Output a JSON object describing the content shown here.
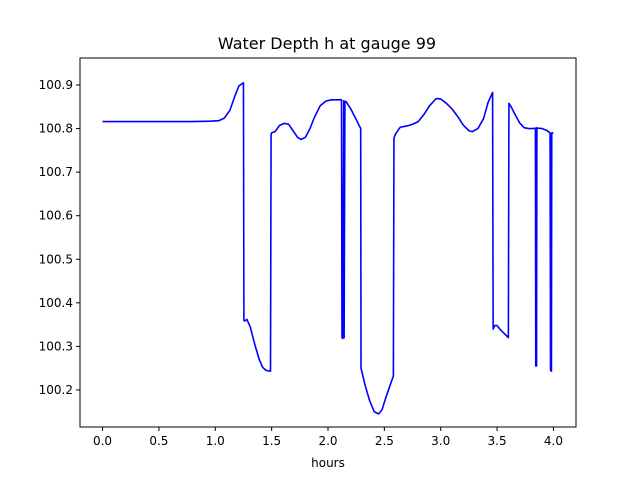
{
  "chart_data": {
    "type": "line",
    "title": "Water Depth h at gauge 99",
    "xlabel": "hours",
    "ylabel": "",
    "xlim": [
      -0.2,
      4.2
    ],
    "ylim": [
      100.115,
      100.962
    ],
    "xticks": [
      0.0,
      0.5,
      1.0,
      1.5,
      2.0,
      2.5,
      3.0,
      3.5,
      4.0
    ],
    "xtick_labels": [
      "0.0",
      "0.5",
      "1.0",
      "1.5",
      "2.0",
      "2.5",
      "3.0",
      "3.5",
      "4.0"
    ],
    "yticks": [
      100.2,
      100.3,
      100.4,
      100.5,
      100.6,
      100.7,
      100.8,
      100.9
    ],
    "ytick_labels": [
      "100.2",
      "100.3",
      "100.4",
      "100.5",
      "100.6",
      "100.7",
      "100.8",
      "100.9"
    ],
    "grid": false,
    "line_color": "#0000ff",
    "series": [
      {
        "name": "",
        "x": [
          0.0,
          0.2,
          0.5,
          0.8,
          0.95,
          1.03,
          1.08,
          1.13,
          1.17,
          1.21,
          1.25,
          1.254,
          1.26,
          1.28,
          1.31,
          1.35,
          1.39,
          1.42,
          1.45,
          1.49,
          1.495,
          1.5,
          1.53,
          1.57,
          1.61,
          1.65,
          1.69,
          1.73,
          1.76,
          1.8,
          1.84,
          1.88,
          1.93,
          1.98,
          2.03,
          2.08,
          2.12,
          2.124,
          2.13,
          2.14,
          2.143,
          2.15,
          2.16,
          2.17,
          2.2,
          2.24,
          2.29,
          2.293,
          2.33,
          2.37,
          2.41,
          2.45,
          2.48,
          2.51,
          2.55,
          2.58,
          2.585,
          2.6,
          2.64,
          2.7,
          2.75,
          2.8,
          2.85,
          2.9,
          2.96,
          3.0,
          3.05,
          3.1,
          3.15,
          3.2,
          3.25,
          3.28,
          3.33,
          3.38,
          3.42,
          3.46,
          3.465,
          3.48,
          3.5,
          3.53,
          3.57,
          3.6,
          3.605,
          3.62,
          3.66,
          3.7,
          3.74,
          3.78,
          3.82,
          3.84,
          3.843,
          3.846,
          3.85,
          3.853,
          3.86,
          3.9,
          3.94,
          3.97,
          3.974,
          3.978,
          3.982,
          3.985,
          4.0
        ],
        "y": [
          100.816,
          100.816,
          100.816,
          100.816,
          100.817,
          100.818,
          100.824,
          100.842,
          100.872,
          100.898,
          100.905,
          100.36,
          100.358,
          100.362,
          100.345,
          100.305,
          100.27,
          100.252,
          100.245,
          100.243,
          100.787,
          100.79,
          100.793,
          100.807,
          100.812,
          100.81,
          100.795,
          100.78,
          100.775,
          100.78,
          100.8,
          100.826,
          100.852,
          100.863,
          100.866,
          100.866,
          100.866,
          100.32,
          100.318,
          100.864,
          100.32,
          100.862,
          100.862,
          100.858,
          100.846,
          100.826,
          100.8,
          100.25,
          100.21,
          100.175,
          100.15,
          100.145,
          100.155,
          100.18,
          100.21,
          100.232,
          100.778,
          100.788,
          100.803,
          100.806,
          100.81,
          100.816,
          100.832,
          100.852,
          100.869,
          100.868,
          100.858,
          100.845,
          100.828,
          100.808,
          100.795,
          100.793,
          100.8,
          100.823,
          100.86,
          100.883,
          100.34,
          100.348,
          100.348,
          100.338,
          100.328,
          100.32,
          100.858,
          100.852,
          100.832,
          100.813,
          100.802,
          100.8,
          100.8,
          100.801,
          100.255,
          100.8,
          100.255,
          100.802,
          100.801,
          100.8,
          100.796,
          100.79,
          100.245,
          100.787,
          100.243,
          100.79,
          100.79
        ]
      }
    ]
  }
}
